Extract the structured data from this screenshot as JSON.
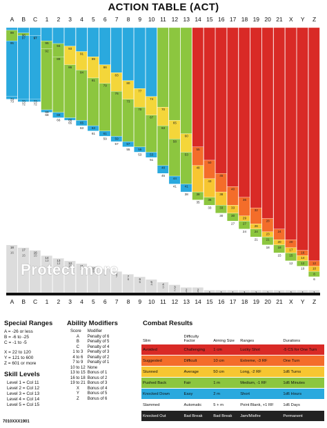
{
  "title": "ACTION TABLE (ACT)",
  "columns": [
    "A",
    "B",
    "C",
    "1",
    "2",
    "3",
    "4",
    "5",
    "6",
    "7",
    "8",
    "9",
    "10",
    "11",
    "12",
    "13",
    "14",
    "15",
    "16",
    "17",
    "18",
    "19",
    "20",
    "21",
    "X",
    "Y",
    "Z"
  ],
  "column_colors": [
    "#d92a26",
    "#f46d2a",
    "#f7a531",
    "#f4d63a",
    "#8cc63f",
    "#3cb878",
    "#2aa9de",
    "#ffffff",
    "#222222"
  ],
  "bands_per_column": [
    [
      99,
      95,
      74,
      73,
      18,
      16
    ],
    [
      98,
      97,
      73,
      72,
      17,
      15
    ],
    [
      97,
      97,
      73,
      72,
      16,
      15
    ],
    [
      95,
      92,
      69,
      68,
      14,
      13
    ],
    [
      94,
      89,
      68,
      66,
      13,
      12
    ],
    [
      93,
      86,
      66,
      65,
      12,
      11
    ],
    [
      91,
      84,
      65,
      63,
      11,
      10
    ],
    [
      89,
      81,
      63,
      61,
      10,
      9
    ],
    [
      86,
      79,
      61,
      59,
      9,
      8
    ],
    [
      83,
      76,
      59,
      57,
      8,
      7
    ],
    [
      80,
      73,
      57,
      55,
      7,
      6
    ],
    [
      77,
      70,
      55,
      53,
      6,
      5
    ],
    [
      74,
      67,
      53,
      51,
      5,
      4
    ],
    [
      70,
      63,
      48,
      45,
      4,
      3
    ],
    [
      65,
      58,
      44,
      41,
      3,
      2
    ],
    [
      60,
      53,
      41,
      38,
      2,
      1
    ],
    [
      55,
      48,
      38,
      35,
      2,
      1
    ],
    [
      50,
      43,
      36,
      33,
      1,
      1
    ],
    [
      45,
      38,
      33,
      30,
      1,
      1
    ],
    [
      40,
      33,
      30,
      27,
      1,
      1
    ],
    [
      36,
      29,
      27,
      24,
      1,
      1
    ],
    [
      32,
      26,
      24,
      21,
      1,
      1
    ],
    [
      28,
      23,
      21,
      18,
      1,
      1
    ],
    [
      24,
      20,
      18,
      15,
      1,
      1
    ],
    [
      20,
      17,
      15,
      12,
      1,
      1
    ],
    [
      16,
      14,
      12,
      10,
      1,
      1
    ],
    [
      12,
      10,
      8,
      6,
      1,
      1
    ]
  ],
  "special_ranges": {
    "title": "Special Ranges",
    "rows": [
      [
        "A",
        "= -26 or less"
      ],
      [
        "B",
        "= -6 to -25"
      ],
      [
        "C",
        "= -1 to -5"
      ],
      [
        "X",
        "= 22 to 120"
      ],
      [
        "Y",
        "= 121 to 600"
      ],
      [
        "Z",
        "= 601 or more"
      ]
    ]
  },
  "skill_levels": {
    "title": "Skill Levels",
    "rows": [
      [
        "Level 1",
        "= Col 11"
      ],
      [
        "Level 2",
        "= Col 12"
      ],
      [
        "Level 3",
        "= Col 13"
      ],
      [
        "Level 4",
        "= Col 14"
      ],
      [
        "Level 5",
        "= Col 15"
      ]
    ]
  },
  "ability_modifiers": {
    "title": "Ability Modifiers",
    "headers": [
      "Score",
      "Modifier"
    ],
    "rows": [
      [
        "A",
        "Penalty of 6"
      ],
      [
        "B",
        "Penalty of 5"
      ],
      [
        "C",
        "Penalty of 4"
      ],
      [
        "1 to 3",
        "Penalty of 3"
      ],
      [
        "4 to 6",
        "Penalty of 2"
      ],
      [
        "7 to 9",
        "Penalty of 1"
      ],
      [
        "10 to 12",
        "None"
      ],
      [
        "13 to 15",
        "Bonus of 1"
      ],
      [
        "16 to 18",
        "Bonus of 2"
      ],
      [
        "19 to 21",
        "Bonus of 3"
      ],
      [
        "X",
        "Bonus of 4"
      ],
      [
        "Y",
        "Bonus of 5"
      ],
      [
        "Z",
        "Bonus of 6"
      ]
    ]
  },
  "combat_results": {
    "title": "Combat Results",
    "headers": [
      "Slim",
      "Difficulty Factor",
      "Aiming Size",
      "Ranges",
      "Durations"
    ],
    "rows": [
      {
        "color": "#d92a26",
        "cells": [
          "Avoided",
          "Challenging",
          "1 cm",
          "Lucky Shot",
          "-5 CS for One Turn"
        ]
      },
      {
        "color": "#f46d2a",
        "cells": [
          "Suggested",
          "Difficult",
          "10 cm",
          "Extreme, -3 RF",
          "One Turn"
        ]
      },
      {
        "color": "#f7c631",
        "cells": [
          "Stunned",
          "Average",
          "50 cm",
          "Long, -2 RF",
          "1d6 Turns"
        ]
      },
      {
        "color": "#8cc63f",
        "cells": [
          "Pushed Back",
          "Fair",
          "1 m",
          "Medium, -1 RF",
          "1d6 Minutes"
        ]
      },
      {
        "color": "#2aa9de",
        "cells": [
          "Knocked Down",
          "Easy",
          "2 m",
          "Short",
          "1d6 Hours"
        ]
      },
      {
        "color": "#ffffff",
        "cells": [
          "Slammed",
          "Automatic",
          "5 + m",
          "Point Blank, +1 RF",
          "1d6 Days"
        ]
      },
      {
        "color": "#222222",
        "cells": [
          "Knocked Out",
          "Bad Break",
          "Bad Break",
          "Jam/Misfire",
          "Permanent"
        ]
      }
    ]
  },
  "watermark": "Protect more",
  "code": "7010XXX1901"
}
